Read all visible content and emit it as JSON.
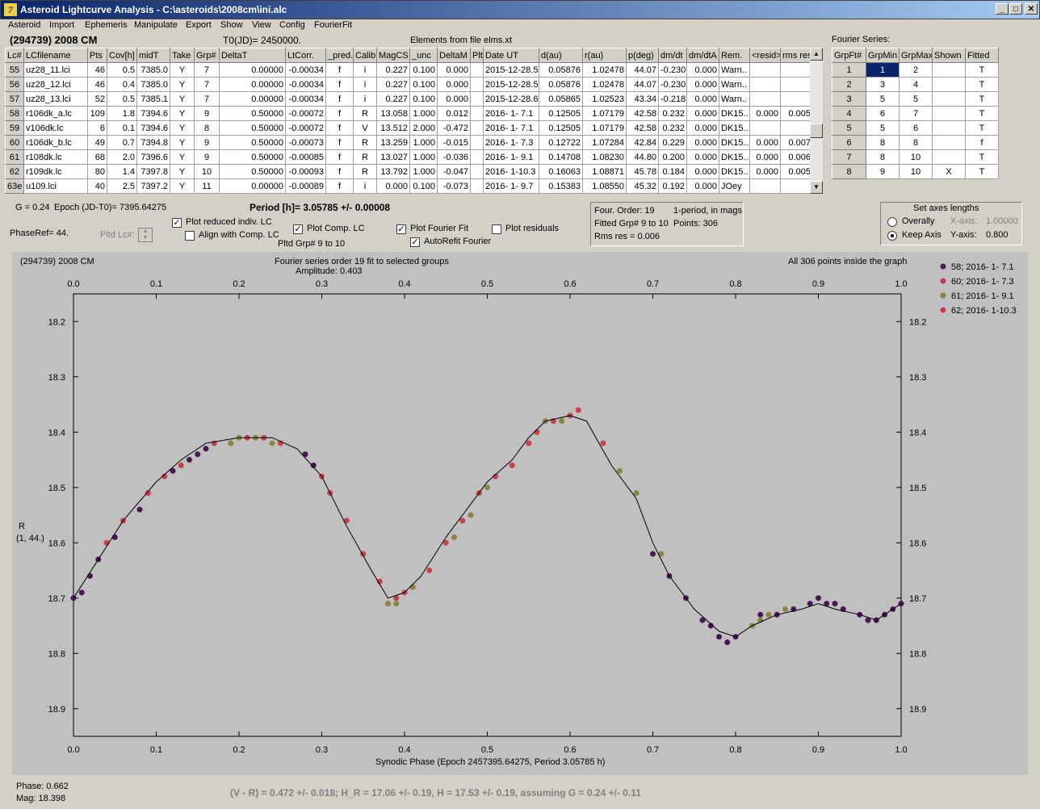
{
  "window": {
    "title": "Asteroid Lightcurve Analysis - C:\\asteroids\\2008cm\\ini.alc"
  },
  "menu": [
    "Asteroid",
    "Import",
    "Ephemeris",
    "Manipulate",
    "Export",
    "Show",
    "View",
    "Config",
    "FourierFit"
  ],
  "header": {
    "asteroid": "(294739) 2008 CM",
    "t0": "T0(JD)= 2450000.",
    "elements": "Elements from file elms.xt",
    "fourier_series_label": "Fourier Series:"
  },
  "lc_table": {
    "columns": [
      "Lc#",
      "LCfilename",
      "Pts",
      "Cov[h]",
      "midT",
      "Take",
      "Grp#",
      "DeltaT",
      "LtCorr.",
      "_pred.",
      "Calib.",
      "MagCS",
      "_unc",
      "DeltaM",
      "Plt",
      "Date UT",
      "d(au)",
      "r(au)",
      "p(deg)",
      "dm/dt",
      "dm/dtA",
      "Rem.",
      "<resid>",
      "rms res"
    ],
    "rows": [
      [
        "55",
        "uz28_11.lci",
        "46",
        "0.5",
        "7385.0",
        "Y",
        "7",
        "0.00000",
        "-0.00034",
        "f",
        "i",
        "0.227",
        "0.100",
        "0.000",
        "",
        "2015-12-28.5",
        "0.05876",
        "1.02478",
        "44.07",
        "-0.230",
        "0.000",
        "Warn..",
        "",
        ""
      ],
      [
        "56",
        "uz28_12.lci",
        "46",
        "0.4",
        "7385.0",
        "Y",
        "7",
        "0.00000",
        "-0.00034",
        "f",
        "i",
        "0.227",
        "0.100",
        "0.000",
        "",
        "2015-12-28.5",
        "0.05876",
        "1.02478",
        "44.07",
        "-0.230",
        "0.000",
        "Warn..",
        "",
        ""
      ],
      [
        "57",
        "uz28_13.lci",
        "52",
        "0.5",
        "7385.1",
        "Y",
        "7",
        "0.00000",
        "-0.00034",
        "f",
        "i",
        "0.227",
        "0.100",
        "0.000",
        "",
        "2015-12-28.6",
        "0.05865",
        "1.02523",
        "43.34",
        "-0.218",
        "0.000",
        "Warn..",
        "",
        ""
      ],
      [
        "58",
        "r106dk_a.lc",
        "109",
        "1.8",
        "7394.6",
        "Y",
        "9",
        "0.50000",
        "-0.00072",
        "f",
        "R",
        "13.058",
        "1.000",
        "0.012",
        "",
        "2016- 1- 7.1",
        "0.12505",
        "1.07179",
        "42.58",
        "0.232",
        "0.000",
        "DK15..",
        "0.000",
        "0.005"
      ],
      [
        "59",
        "v106dk.lc",
        "6",
        "0.1",
        "7394.6",
        "Y",
        "8",
        "0.50000",
        "-0.00072",
        "f",
        "V",
        "13.512",
        "2.000",
        "-0.472",
        "",
        "2016- 1- 7.1",
        "0.12505",
        "1.07179",
        "42.58",
        "0.232",
        "0.000",
        "DK15..",
        "",
        ""
      ],
      [
        "60",
        "r106dk_b.lc",
        "49",
        "0.7",
        "7394.8",
        "Y",
        "9",
        "0.50000",
        "-0.00073",
        "f",
        "R",
        "13.259",
        "1.000",
        "-0.015",
        "",
        "2016- 1- 7.3",
        "0.12722",
        "1.07284",
        "42.84",
        "0.229",
        "0.000",
        "DK15..",
        "0.000",
        "0.007"
      ],
      [
        "61",
        "r108dk.lc",
        "68",
        "2.0",
        "7396.6",
        "Y",
        "9",
        "0.50000",
        "-0.00085",
        "f",
        "R",
        "13.027",
        "1.000",
        "-0.036",
        "",
        "2016- 1- 9.1",
        "0.14708",
        "1.08230",
        "44.80",
        "0.200",
        "0.000",
        "DK15..",
        "0.000",
        "0.006"
      ],
      [
        "62",
        "r109dk.lc",
        "80",
        "1.4",
        "7397.8",
        "Y",
        "10",
        "0.50000",
        "-0.00093",
        "f",
        "R",
        "13.792",
        "1.000",
        "-0.047",
        "",
        "2016- 1-10.3",
        "0.16063",
        "1.08871",
        "45.78",
        "0.184",
        "0.000",
        "DK15..",
        "0.000",
        "0.005"
      ],
      [
        "63e",
        "u109.lci",
        "40",
        "2.5",
        "7397.2",
        "Y",
        "11",
        "0.00000",
        "-0.00089",
        "f",
        "i",
        "0.000",
        "0.100",
        "-0.073",
        "",
        "2016- 1- 9.7",
        "0.15383",
        "1.08550",
        "45.32",
        "0.192",
        "0.000",
        "JOey",
        "",
        ""
      ]
    ]
  },
  "fourier_table": {
    "columns": [
      "GrpFt#",
      "GrpMin",
      "GrpMax",
      "Shown",
      "Fitted"
    ],
    "rows": [
      [
        "1",
        "1",
        "2",
        "",
        "T"
      ],
      [
        "2",
        "3",
        "4",
        "",
        "T"
      ],
      [
        "3",
        "5",
        "5",
        "",
        "T"
      ],
      [
        "4",
        "6",
        "7",
        "",
        "T"
      ],
      [
        "5",
        "5",
        "6",
        "",
        "T"
      ],
      [
        "6",
        "8",
        "8",
        "",
        "f"
      ],
      [
        "7",
        "8",
        "10",
        "",
        "T"
      ],
      [
        "8",
        "9",
        "10",
        "X",
        "T"
      ]
    ]
  },
  "controls": {
    "g_value": "G = 0.24",
    "epoch": "Epoch (JD-T0)= 7395.64275",
    "period": "Period [h]= 3.05785 +/- 0.00008",
    "phaseref": "PhaseRef= 44.",
    "pltd_lc": "Pltd Lc#:",
    "plot_reduced": "Plot reduced indiv. LC",
    "align_comp": "Align with Comp. LC",
    "plot_comp": "Plot Comp. LC",
    "pltd_grp": "Pltd Grp#  9  to  10",
    "plot_fourier": "Plot Fourier Fit",
    "autorefit": "AutoRefit Fourier",
    "plot_residuals": "Plot residuals",
    "four_order": "Four. Order: 19",
    "one_period": "1-period, in mags",
    "fitted_grp": "Fitted Grp# 9 to 10",
    "points": "Points: 306",
    "rms_res": "Rms res     = 0.006",
    "set_axes": "Set axes lengths",
    "overally": "Overally",
    "keep_axis": "Keep Axis",
    "x_axis_label": "X-axis:",
    "x_axis_value": "1.00000",
    "y_axis_label": "Y-axis:",
    "y_axis_value": "0.800"
  },
  "plot": {
    "object": "(294739) 2008 CM",
    "title": "Fourier series order 19 fit to selected groups",
    "amplitude": "Amplitude: 0.403",
    "points_note": "All 306 points inside the graph",
    "ylabel": "R",
    "ylabel2": "(1, 44.)",
    "xlabel": "Synodic Phase (Epoch 2457395.64275, Period 3.05785 h)"
  },
  "status": {
    "phase": "Phase:  0.662",
    "mag": "Mag:     18.398",
    "color": "(V - R) = 0.472 +/- 0.018; H_R = 17.06 +/- 0.19, H = 17.53 +/- 0.19, assuming G = 0.24 +/- 0.11"
  },
  "colors": {
    "series58": "#4b1656",
    "series60": "#c8404a",
    "series61": "#8c8440",
    "series62": "#c8404a"
  },
  "chart_data": {
    "type": "scatter",
    "xlim": [
      0.0,
      1.0
    ],
    "ylim": [
      18.95,
      18.15
    ],
    "y_inverted": true,
    "xticks": [
      0.0,
      0.1,
      0.2,
      0.3,
      0.4,
      0.5,
      0.6,
      0.7,
      0.8,
      0.9,
      1.0
    ],
    "yticks": [
      18.2,
      18.3,
      18.4,
      18.5,
      18.6,
      18.7,
      18.8,
      18.9
    ],
    "legend": "top-right",
    "fourier_curve": [
      [
        0.0,
        18.7
      ],
      [
        0.03,
        18.63
      ],
      [
        0.06,
        18.56
      ],
      [
        0.1,
        18.49
      ],
      [
        0.13,
        18.45
      ],
      [
        0.16,
        18.42
      ],
      [
        0.2,
        18.41
      ],
      [
        0.24,
        18.41
      ],
      [
        0.27,
        18.43
      ],
      [
        0.3,
        18.48
      ],
      [
        0.33,
        18.57
      ],
      [
        0.36,
        18.65
      ],
      [
        0.38,
        18.7
      ],
      [
        0.4,
        18.69
      ],
      [
        0.42,
        18.66
      ],
      [
        0.45,
        18.59
      ],
      [
        0.48,
        18.53
      ],
      [
        0.5,
        18.49
      ],
      [
        0.53,
        18.45
      ],
      [
        0.55,
        18.41
      ],
      [
        0.57,
        18.38
      ],
      [
        0.6,
        18.37
      ],
      [
        0.62,
        18.38
      ],
      [
        0.65,
        18.46
      ],
      [
        0.68,
        18.52
      ],
      [
        0.7,
        18.6
      ],
      [
        0.72,
        18.66
      ],
      [
        0.75,
        18.72
      ],
      [
        0.78,
        18.76
      ],
      [
        0.8,
        18.77
      ],
      [
        0.82,
        18.75
      ],
      [
        0.85,
        18.73
      ],
      [
        0.88,
        18.72
      ],
      [
        0.9,
        18.71
      ],
      [
        0.92,
        18.72
      ],
      [
        0.95,
        18.73
      ],
      [
        0.97,
        18.74
      ],
      [
        1.0,
        18.71
      ]
    ],
    "series": [
      {
        "name": "58; 2016- 1- 7.1",
        "x": [
          0.0,
          0.01,
          0.02,
          0.03,
          0.05,
          0.08,
          0.12,
          0.14,
          0.15,
          0.16,
          0.28,
          0.29,
          0.7,
          0.72,
          0.74,
          0.76,
          0.77,
          0.78,
          0.79,
          0.8,
          0.83,
          0.85,
          0.87,
          0.89,
          0.9,
          0.91,
          0.92,
          0.93,
          0.95,
          0.96,
          0.97,
          0.98,
          0.99,
          1.0
        ],
        "y": [
          18.7,
          18.69,
          18.66,
          18.63,
          18.59,
          18.54,
          18.47,
          18.45,
          18.44,
          18.43,
          18.44,
          18.46,
          18.62,
          18.66,
          18.7,
          18.74,
          18.75,
          18.77,
          18.78,
          18.77,
          18.73,
          18.73,
          18.72,
          18.71,
          18.7,
          18.71,
          18.71,
          18.72,
          18.73,
          18.74,
          18.74,
          18.73,
          18.72,
          18.71
        ]
      },
      {
        "name": "60; 2016- 1- 7.3",
        "x": [
          0.04,
          0.06,
          0.09,
          0.11,
          0.13,
          0.17,
          0.19,
          0.21,
          0.23,
          0.25,
          0.3,
          0.31,
          0.33,
          0.35,
          0.37,
          0.39,
          0.4,
          0.41,
          0.43,
          0.45,
          0.47,
          0.49,
          0.51,
          0.53,
          0.55,
          0.56,
          0.58,
          0.6,
          0.61,
          0.64
        ],
        "y": [
          18.6,
          18.56,
          18.51,
          18.48,
          18.46,
          18.42,
          18.42,
          18.41,
          18.41,
          18.42,
          18.48,
          18.51,
          18.56,
          18.62,
          18.67,
          18.7,
          18.69,
          18.68,
          18.65,
          18.6,
          18.56,
          18.51,
          18.48,
          18.46,
          18.42,
          18.4,
          18.38,
          18.37,
          18.36,
          18.42
        ]
      },
      {
        "name": "61; 2016- 1- 9.1",
        "x": [
          0.19,
          0.2,
          0.22,
          0.24,
          0.38,
          0.39,
          0.41,
          0.46,
          0.48,
          0.5,
          0.57,
          0.59,
          0.66,
          0.68,
          0.71,
          0.82,
          0.83,
          0.84,
          0.86
        ],
        "y": [
          18.42,
          18.41,
          18.41,
          18.42,
          18.71,
          18.71,
          18.68,
          18.59,
          18.55,
          18.5,
          18.38,
          18.38,
          18.47,
          18.51,
          18.62,
          18.75,
          18.74,
          18.73,
          18.72
        ]
      },
      {
        "name": "62; 2016- 1-10.3",
        "x": [],
        "y": []
      }
    ]
  }
}
